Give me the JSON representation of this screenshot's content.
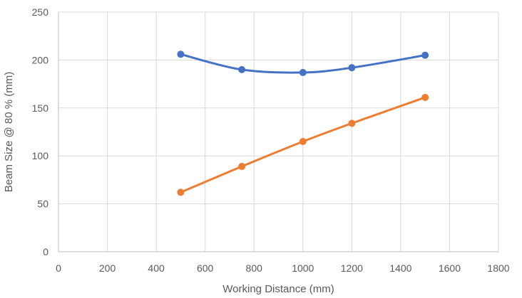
{
  "chart_data": {
    "type": "scatter",
    "title": "",
    "xlabel": "Working Distance (mm)",
    "ylabel": "Beam Size @ 80 % (mm)",
    "xlim": [
      0,
      1800
    ],
    "ylim": [
      0,
      250
    ],
    "xticks": [
      0,
      200,
      400,
      600,
      800,
      1000,
      1200,
      1400,
      1600,
      1800
    ],
    "yticks": [
      0,
      50,
      100,
      150,
      200,
      250
    ],
    "grid": true,
    "legend": "none",
    "smooth_lines": true,
    "series": [
      {
        "color": "#4472c4",
        "x": [
          500,
          750,
          1000,
          1200,
          1500
        ],
        "y": [
          206,
          190,
          187,
          192,
          205
        ]
      },
      {
        "color": "#ed7d31",
        "x": [
          500,
          750,
          1000,
          1200,
          1500
        ],
        "y": [
          62,
          89,
          115,
          134,
          161
        ]
      }
    ]
  }
}
